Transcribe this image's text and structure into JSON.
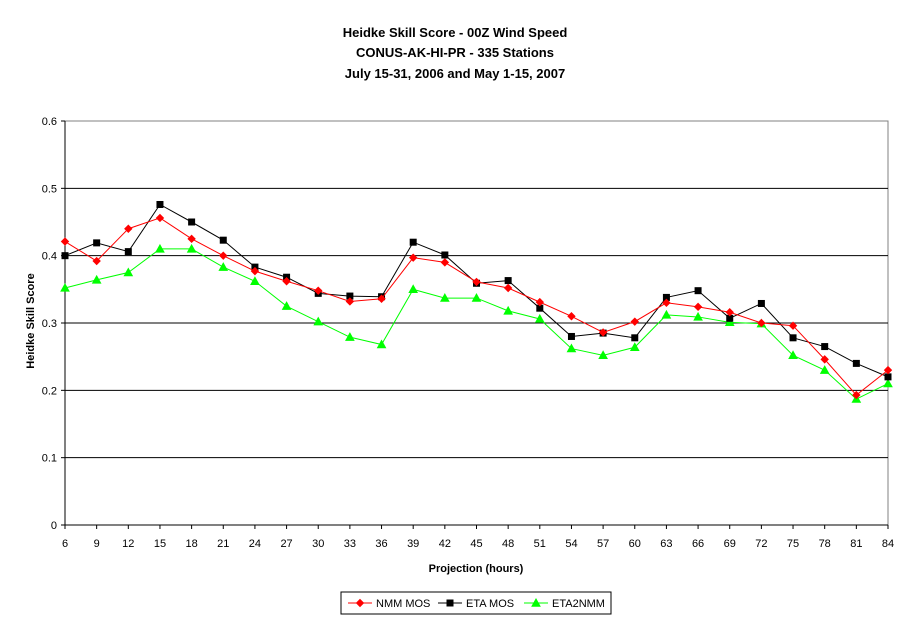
{
  "chart_data": {
    "type": "line",
    "title": [
      "Heidke Skill Score - 00Z Wind Speed",
      "CONUS-AK-HI-PR - 335 Stations",
      "July 15-31, 2006 and May 1-15, 2007"
    ],
    "xlabel": "Projection (hours)",
    "ylabel": "Heidke Skill Score",
    "x": [
      6,
      9,
      12,
      15,
      18,
      21,
      24,
      27,
      30,
      33,
      36,
      39,
      42,
      45,
      48,
      51,
      54,
      57,
      60,
      63,
      66,
      69,
      72,
      75,
      78,
      81,
      84
    ],
    "ylim": [
      0,
      0.6
    ],
    "yticks": [
      "0",
      "0.1",
      "0.2",
      "0.3",
      "0.4",
      "0.5",
      "0.6"
    ],
    "grid": "horizontal",
    "legend_position": "bottom",
    "series": [
      {
        "name": "NMM MOS",
        "color": "#ff0000",
        "marker": "diamond",
        "values": [
          0.421,
          0.392,
          0.44,
          0.456,
          0.425,
          0.4,
          0.377,
          0.362,
          0.348,
          0.332,
          0.336,
          0.397,
          0.39,
          0.361,
          0.352,
          0.331,
          0.31,
          0.286,
          0.302,
          0.33,
          0.324,
          0.316,
          0.3,
          0.296,
          0.246,
          0.193,
          0.23
        ]
      },
      {
        "name": "ETA MOS",
        "color": "#000000",
        "marker": "square",
        "values": [
          0.4,
          0.419,
          0.406,
          0.476,
          0.45,
          0.423,
          0.383,
          0.368,
          0.344,
          0.34,
          0.339,
          0.42,
          0.401,
          0.359,
          0.363,
          0.322,
          0.28,
          0.285,
          0.278,
          0.338,
          0.348,
          0.307,
          0.329,
          0.278,
          0.265,
          0.24,
          0.22
        ]
      },
      {
        "name": "ETA2NMM",
        "color": "#00ff00",
        "marker": "triangle",
        "values": [
          0.352,
          0.364,
          0.375,
          0.41,
          0.41,
          0.383,
          0.362,
          0.325,
          0.302,
          0.279,
          0.268,
          0.35,
          0.337,
          0.337,
          0.318,
          0.306,
          0.262,
          0.252,
          0.264,
          0.312,
          0.309,
          0.301,
          0.299,
          0.252,
          0.23,
          0.187,
          0.21
        ]
      }
    ]
  }
}
